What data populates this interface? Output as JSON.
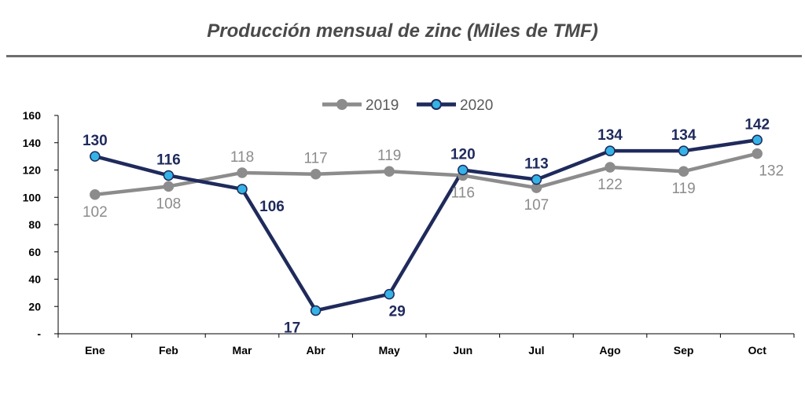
{
  "title": "Producción mensual de zinc (Miles de TMF)",
  "chart_data": {
    "type": "line",
    "title": "Producción mensual de zinc (Miles de TMF)",
    "categories": [
      "Ene",
      "Feb",
      "Mar",
      "Abr",
      "May",
      "Jun",
      "Jul",
      "Ago",
      "Sep",
      "Oct"
    ],
    "ylim": [
      0,
      160
    ],
    "yticks": [
      0,
      20,
      40,
      60,
      80,
      100,
      120,
      140,
      160
    ],
    "ytick_labels": [
      "-",
      "20",
      "40",
      "60",
      "80",
      "100",
      "120",
      "140",
      "160"
    ],
    "grid": false,
    "legend_position": "top-center",
    "series": [
      {
        "name": "2019",
        "values": [
          102,
          108,
          118,
          117,
          119,
          116,
          107,
          122,
          119,
          132
        ],
        "color": "#8c8c8c",
        "marker_color": "#8c8c8c",
        "label_color": "#8c8c8c"
      },
      {
        "name": "2020",
        "values": [
          130,
          116,
          106,
          17,
          29,
          120,
          113,
          134,
          134,
          142
        ],
        "color": "#1f2a5c",
        "marker_color": "#35b3e6",
        "label_color": "#1f2a5c"
      }
    ]
  }
}
